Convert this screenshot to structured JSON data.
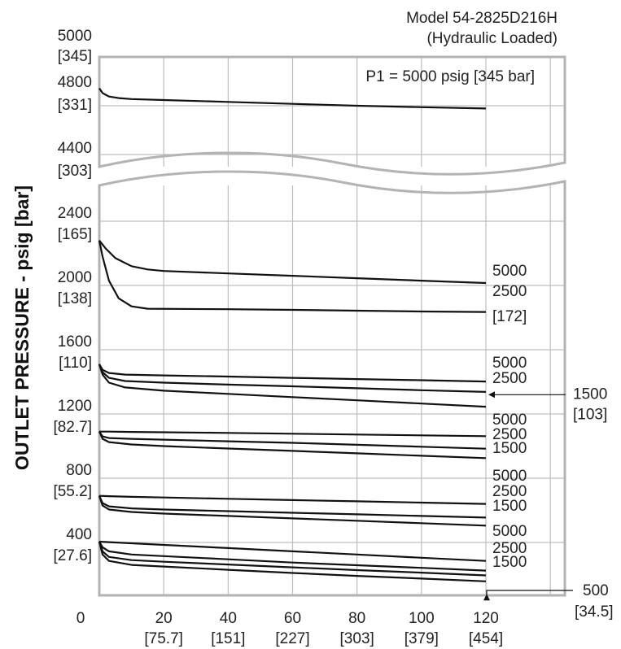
{
  "chart_data": {
    "type": "line",
    "title": "Model 54-2825D216H",
    "subtitle": "(Hydraulic Loaded)",
    "ylabel": "OUTLET PRESSURE - psig [bar]",
    "xlabel": "",
    "xlim": [
      0,
      145
    ],
    "x_ticks": [
      {
        "value": 0,
        "line1": "0",
        "line2": ""
      },
      {
        "value": 20,
        "line1": "20",
        "line2": "[75.7]"
      },
      {
        "value": 40,
        "line1": "40",
        "line2": "[151]"
      },
      {
        "value": 60,
        "line1": "60",
        "line2": "[227]"
      },
      {
        "value": 80,
        "line1": "80",
        "line2": "[303]"
      },
      {
        "value": 100,
        "line1": "100",
        "line2": "[379]"
      },
      {
        "value": 120,
        "line1": "120",
        "line2": "[454]"
      }
    ],
    "upper_panel": {
      "ylim": [
        4350,
        5000
      ],
      "y_ticks": [
        {
          "value": 5000,
          "line1": "5000",
          "line2": "[345]"
        },
        {
          "value": 4800,
          "line1": "4800",
          "line2": "[331]"
        },
        {
          "value": 4400,
          "line1": "4400",
          "line2": "[303]"
        }
      ]
    },
    "lower_panel": {
      "ylim": [
        0,
        2600
      ],
      "y_ticks": [
        {
          "value": 2400,
          "line1": "2400",
          "line2": "[165]"
        },
        {
          "value": 2000,
          "line1": "2000",
          "line2": "[138]"
        },
        {
          "value": 1600,
          "line1": "1600",
          "line2": "[110]"
        },
        {
          "value": 1200,
          "line1": "1200",
          "line2": "[82.7]"
        },
        {
          "value": 800,
          "line1": "800",
          "line2": "[55.2]"
        },
        {
          "value": 400,
          "line1": "400",
          "line2": "[27.6]"
        }
      ]
    },
    "series": [
      {
        "panel": "upper",
        "name": "P1 = 5000 psig [345 bar]",
        "x": [
          0,
          1,
          3,
          6,
          10,
          20,
          40,
          60,
          80,
          100,
          120
        ],
        "y": [
          4910,
          4880,
          4858,
          4848,
          4842,
          4836,
          4824,
          4812,
          4800,
          4788,
          4777
        ]
      },
      {
        "panel": "lower",
        "name": "5000",
        "x": [
          0,
          2,
          5,
          10,
          15,
          20,
          40,
          60,
          80,
          100,
          120
        ],
        "y": [
          2280,
          2230,
          2170,
          2120,
          2100,
          2090,
          2075,
          2060,
          2045,
          2030,
          2015
        ]
      },
      {
        "panel": "lower",
        "name": "2500",
        "x": [
          0,
          1,
          3,
          6,
          10,
          15,
          40,
          60,
          80,
          100,
          120
        ],
        "y": [
          2280,
          2180,
          2030,
          1920,
          1870,
          1855,
          1852,
          1848,
          1843,
          1838,
          1835
        ]
      },
      {
        "panel": "lower",
        "name": "5000",
        "x": [
          0,
          1,
          3,
          8,
          20,
          40,
          60,
          80,
          100,
          120
        ],
        "y": [
          1510,
          1475,
          1455,
          1445,
          1440,
          1433,
          1425,
          1417,
          1410,
          1402
        ]
      },
      {
        "panel": "lower",
        "name": "2500",
        "x": [
          0,
          1,
          3,
          8,
          20,
          40,
          60,
          80,
          100,
          120
        ],
        "y": [
          1510,
          1460,
          1425,
          1405,
          1395,
          1383,
          1372,
          1360,
          1348,
          1337
        ]
      },
      {
        "panel": "lower",
        "name": "1500",
        "x": [
          0,
          1,
          3,
          8,
          20,
          40,
          60,
          80,
          100,
          120
        ],
        "y": [
          1510,
          1445,
          1395,
          1365,
          1345,
          1325,
          1305,
          1285,
          1265,
          1245
        ]
      },
      {
        "panel": "lower",
        "name": "5000",
        "x": [
          0,
          3,
          10,
          20,
          40,
          60,
          80,
          100,
          120
        ],
        "y": [
          1090,
          1090,
          1088,
          1086,
          1082,
          1077,
          1072,
          1067,
          1062
        ]
      },
      {
        "panel": "lower",
        "name": "2500",
        "x": [
          0,
          1,
          3,
          10,
          20,
          40,
          60,
          80,
          100,
          120
        ],
        "y": [
          1090,
          1060,
          1050,
          1045,
          1040,
          1030,
          1020,
          1008,
          996,
          984
        ]
      },
      {
        "panel": "lower",
        "name": "1500",
        "x": [
          0,
          1,
          3,
          10,
          20,
          40,
          60,
          80,
          100,
          120
        ],
        "y": [
          1090,
          1045,
          1025,
          1010,
          1000,
          985,
          970,
          955,
          940,
          925
        ]
      },
      {
        "panel": "lower",
        "name": "5000",
        "x": [
          0,
          3,
          10,
          20,
          40,
          60,
          80,
          100,
          120
        ],
        "y": [
          690,
          688,
          684,
          680,
          672,
          664,
          656,
          648,
          640
        ]
      },
      {
        "panel": "lower",
        "name": "2500",
        "x": [
          0,
          1,
          3,
          10,
          20,
          40,
          60,
          80,
          100,
          120
        ],
        "y": [
          690,
          645,
          625,
          612,
          605,
          595,
          585,
          575,
          565,
          555
        ]
      },
      {
        "panel": "lower",
        "name": "1500",
        "x": [
          0,
          1,
          3,
          10,
          20,
          40,
          60,
          80,
          100,
          120
        ],
        "y": [
          690,
          630,
          605,
          590,
          580,
          565,
          550,
          535,
          520,
          505
        ]
      },
      {
        "panel": "lower",
        "name": "5000",
        "x": [
          0,
          3,
          10,
          20,
          40,
          60,
          80,
          100,
          120
        ],
        "y": [
          405,
          402,
          395,
          385,
          365,
          345,
          325,
          305,
          285
        ]
      },
      {
        "panel": "lower",
        "name": "2500",
        "x": [
          0,
          1,
          3,
          10,
          20,
          40,
          60,
          80,
          100,
          120
        ],
        "y": [
          405,
          370,
          345,
          325,
          315,
          295,
          275,
          258,
          242,
          225
        ]
      },
      {
        "panel": "lower",
        "name": "2500",
        "x": [
          0,
          1,
          3,
          10,
          20,
          40,
          60,
          80,
          100,
          120
        ],
        "y": [
          405,
          345,
          310,
          290,
          280,
          263,
          245,
          228,
          212,
          195
        ]
      },
      {
        "panel": "lower",
        "name": "1500",
        "x": [
          0,
          1,
          3,
          10,
          20,
          40,
          60,
          80,
          100,
          120
        ],
        "y": [
          405,
          325,
          285,
          260,
          250,
          230,
          210,
          192,
          175,
          158
        ]
      }
    ],
    "annotations": {
      "end_labels": [
        "5000",
        "2500",
        "[172]",
        "5000",
        "2500",
        "5000",
        "2500",
        "1500",
        "5000",
        "2500",
        "1500",
        "5000",
        "2500",
        "1500"
      ],
      "callout_1500": {
        "line1": "1500",
        "line2": "[103]",
        "x": 120,
        "y": 1320
      },
      "callout_500": {
        "line1": "500",
        "line2": "[34.5]",
        "x": 120,
        "y": 110
      }
    },
    "grid": true,
    "legend": "none"
  },
  "colors": {
    "frame": "#b3b3b3",
    "grid": "#bdbdbd",
    "curve": "#111111",
    "text": "#222222"
  }
}
